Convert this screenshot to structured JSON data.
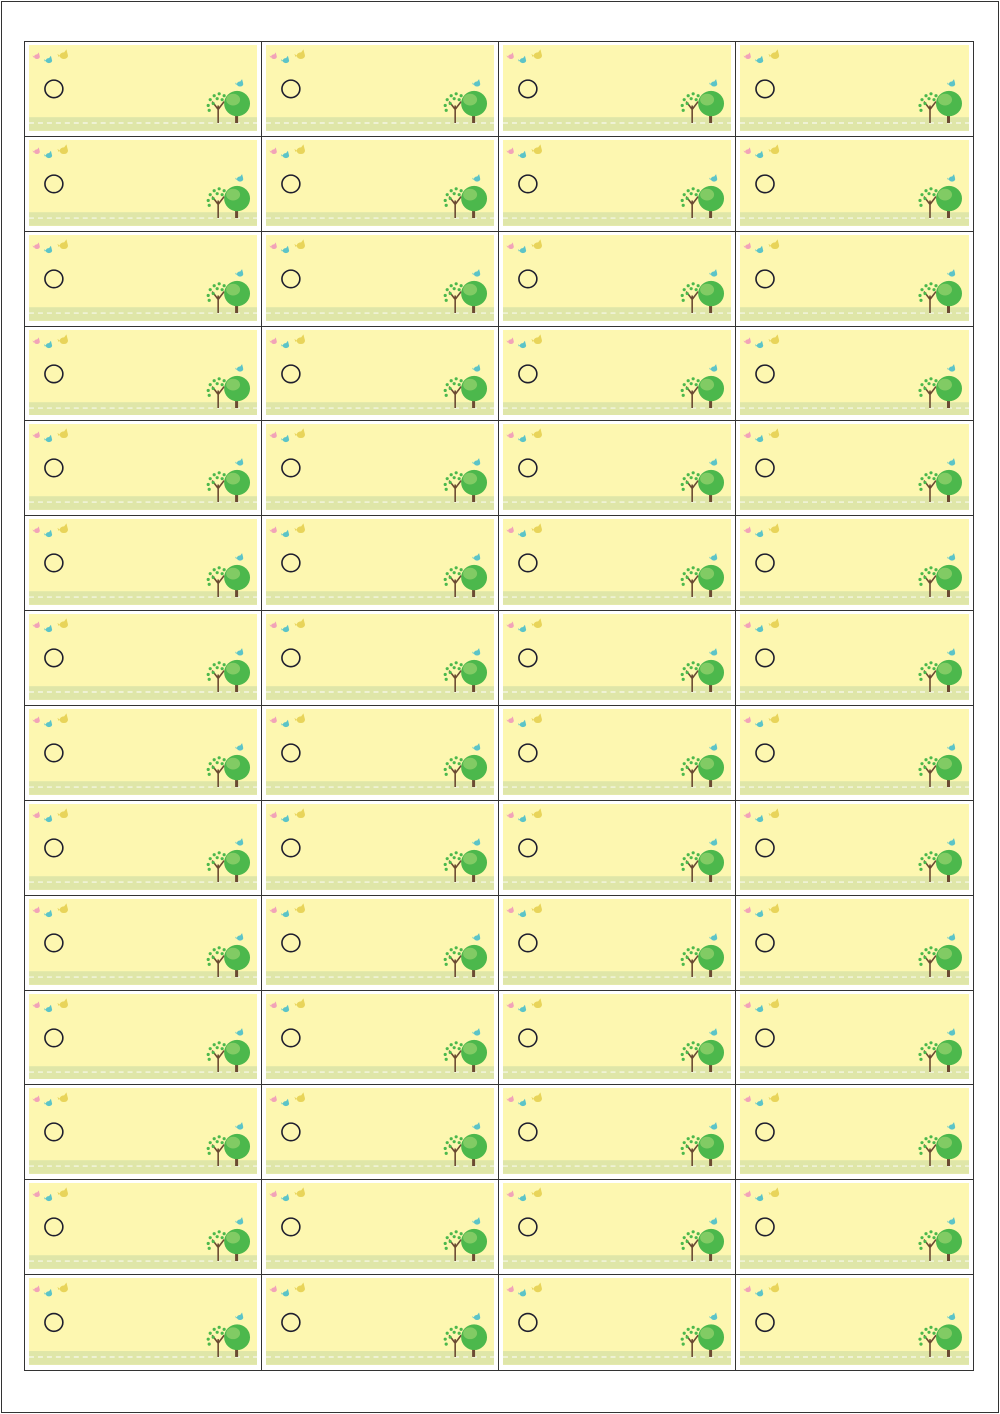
{
  "sheet": {
    "columns": 4,
    "rows": 14,
    "label_text": ""
  },
  "colors": {
    "label_background": "#fdf7b0",
    "ground_strip": "#dfe6a8",
    "circle_outline": "#1e1e2e",
    "bird_pink": "#f2a3b8",
    "bird_teal": "#5cc4c8",
    "bird_yellow": "#e8d45a",
    "tree_green": "#4cb84c",
    "tree_light": "#8ed06a",
    "trunk": "#6b4a32"
  },
  "icons": [
    "bird-icon",
    "circle-mark",
    "tree-icon"
  ]
}
